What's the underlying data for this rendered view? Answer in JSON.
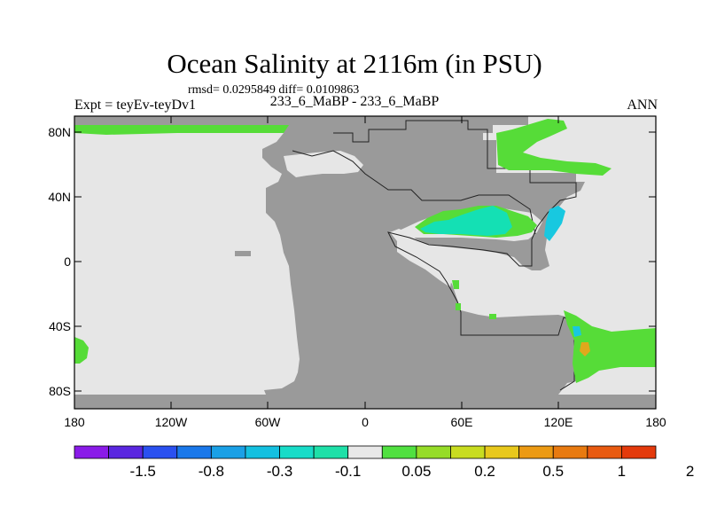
{
  "title": "Ocean Salinity at 2116m (in PSU)",
  "stats": "rmsd= 0.0295849 diff= 0.0109863",
  "experiment": "Expt = teyEv-teyDv1",
  "comparison": "233_6_MaBP - 233_6_MaBP",
  "season": "ANN",
  "x_ticks": [
    "180",
    "120W",
    "60W",
    "0",
    "60E",
    "120E",
    "180"
  ],
  "y_ticks": [
    "80N",
    "40N",
    "0",
    "40S",
    "80S"
  ],
  "colorbar": {
    "colors": [
      "#8a1be8",
      "#5a27e0",
      "#2a50f0",
      "#1a78ea",
      "#1aa0e6",
      "#14c0e0",
      "#18dcc8",
      "#1ee0a8",
      "#e8e8e8",
      "#50e040",
      "#96dc28",
      "#c8dc20",
      "#e8c81c",
      "#ec9a14",
      "#e87a10",
      "#e85a10",
      "#e43a0c"
    ],
    "labels": [
      "-1.5",
      "-0.8",
      "-0.3",
      "-0.1",
      "0.05",
      "0.2",
      "0.5",
      "1",
      "2"
    ]
  },
  "palette": {
    "ocean": "#e6e6e6",
    "land": "#9a9a9a",
    "positive": "#56dc38",
    "negative": "#14e0b4",
    "cyan": "#18c8e0",
    "orange": "#e0a81c"
  }
}
